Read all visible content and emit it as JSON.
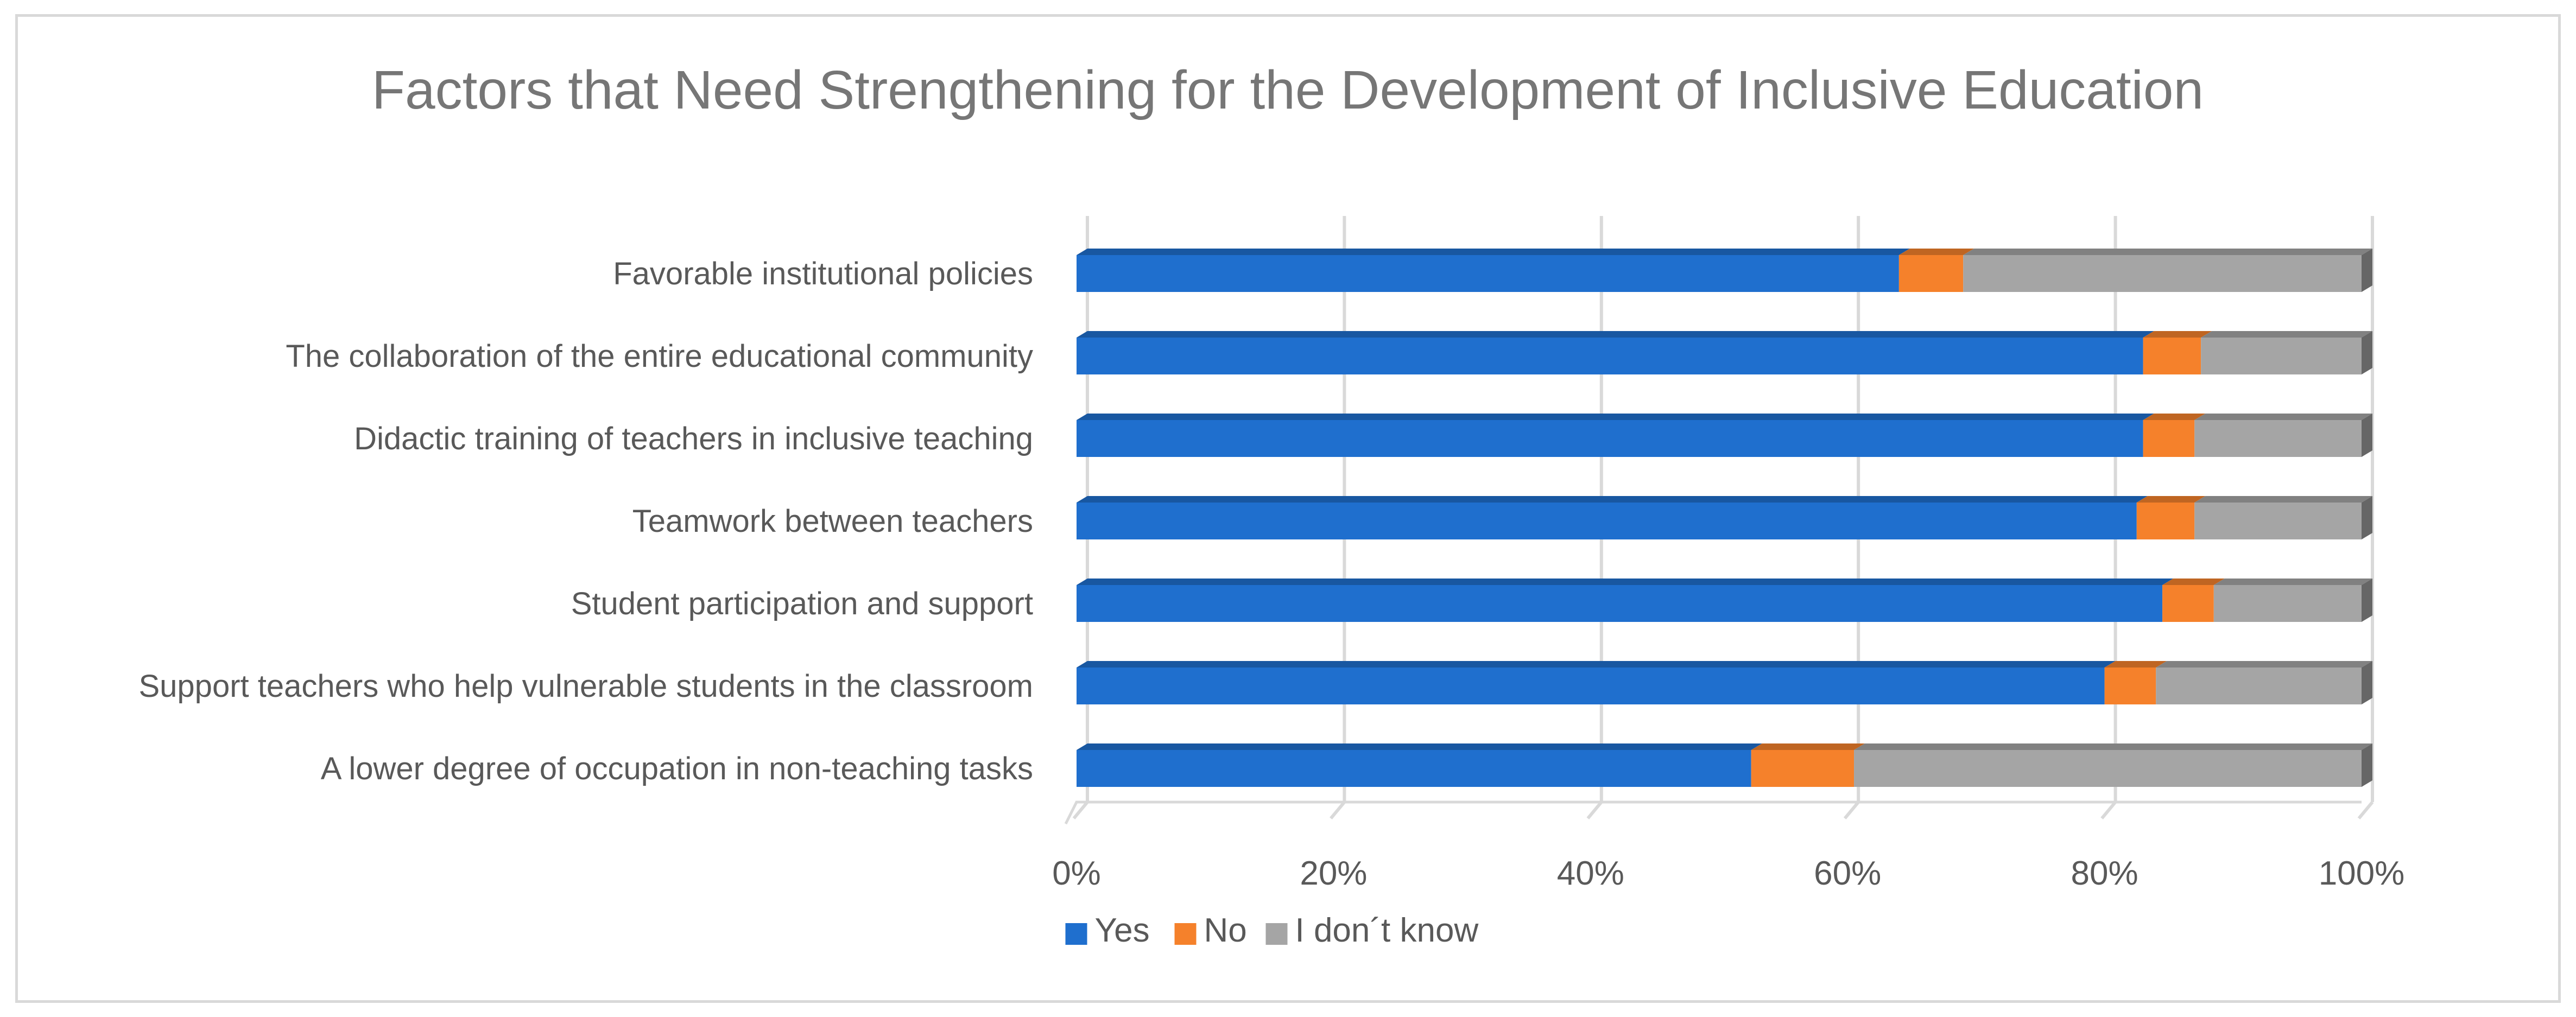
{
  "chart_data": {
    "type": "bar",
    "orientation": "horizontal",
    "stacked": true,
    "percent_stacked": true,
    "title": "Factors that Need Strengthening for the Development of Inclusive Education",
    "xlabel": "",
    "ylabel": "",
    "xlim": [
      0,
      100
    ],
    "x_ticks": [
      "0%",
      "20%",
      "40%",
      "60%",
      "80%",
      "100%"
    ],
    "grid": true,
    "legend_position": "bottom",
    "categories": [
      "Favorable institutional policies",
      "The collaboration of the entire educational community",
      "Didactic training of teachers in inclusive teaching",
      "Teamwork between teachers",
      "Student participation and support",
      "Support teachers who help vulnerable students in the classroom",
      "A lower degree of occupation in non-teaching tasks"
    ],
    "series": [
      {
        "name": "Yes",
        "color": "#1f6fce",
        "values": [
          64,
          83,
          83,
          82.5,
          84.5,
          80,
          52.5
        ]
      },
      {
        "name": "No",
        "color": "#f5812b",
        "values": [
          5,
          4.5,
          4,
          4.5,
          4,
          4,
          8
        ]
      },
      {
        "name": "I don´t know",
        "color": "#a5a5a5",
        "values": [
          31,
          12.5,
          13,
          13,
          11.5,
          16,
          39.5
        ]
      }
    ]
  }
}
